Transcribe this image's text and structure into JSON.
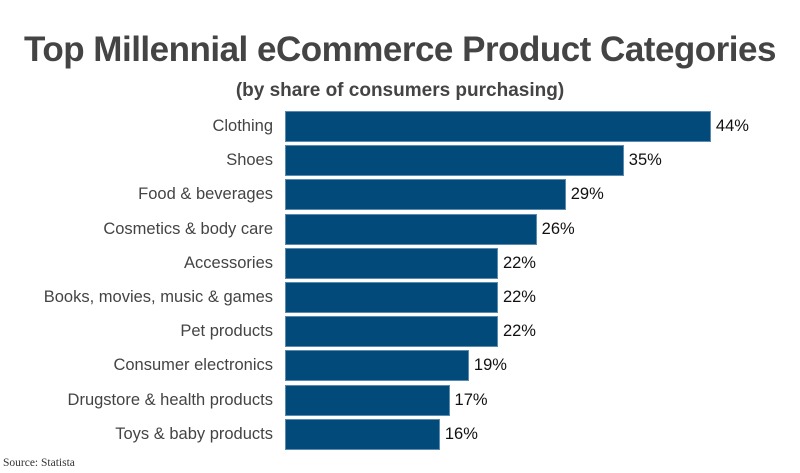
{
  "chart_data": {
    "type": "bar",
    "orientation": "horizontal",
    "title": "Top Millennial eCommerce Product Categories",
    "subtitle": "(by share of consumers purchasing)",
    "categories": [
      "Clothing",
      "Shoes",
      "Food & beverages",
      "Cosmetics & body care",
      "Accessories",
      "Books, movies, music & games",
      "Pet products",
      "Consumer electronics",
      "Drugstore & health products",
      "Toys & baby products"
    ],
    "values": [
      44,
      35,
      29,
      26,
      22,
      22,
      22,
      19,
      17,
      16
    ],
    "value_labels": [
      "44%",
      "35%",
      "29%",
      "26%",
      "22%",
      "22%",
      "22%",
      "19%",
      "17%",
      "16%"
    ],
    "xlabel": "",
    "ylabel": "",
    "unit": "%",
    "grid": false,
    "legend": null,
    "bar_color": "#024a79",
    "source": "Source: Statista"
  }
}
